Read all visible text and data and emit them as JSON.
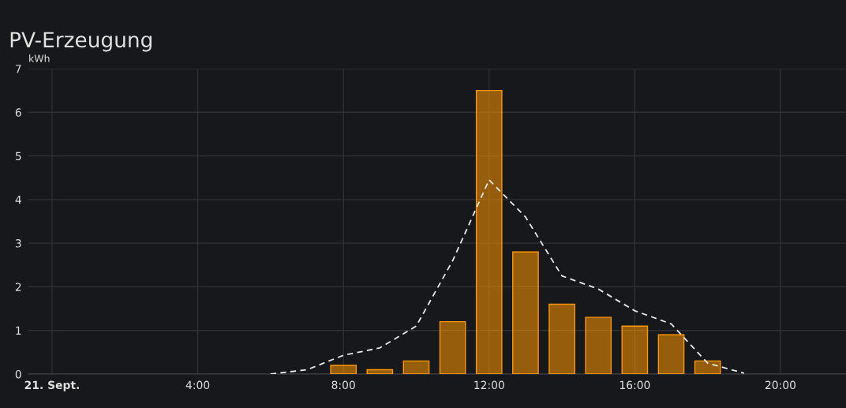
{
  "chart_data": {
    "type": "bar",
    "title": "PV-Erzeugung",
    "ylabel": "kWh",
    "x": [
      8,
      9,
      10,
      11,
      12,
      13,
      14,
      15,
      16,
      17,
      18
    ],
    "series": [
      {
        "color": "#ff9800",
        "values": [
          0.2,
          0.1,
          0.3,
          1.2,
          6.5,
          2.8,
          1.6,
          1.3,
          1.1,
          0.9,
          0.3
        ]
      },
      {
        "type": "line",
        "color": "#e8e8e8",
        "line_style": "dashed",
        "x": [
          6,
          7,
          8,
          9,
          10,
          11,
          12,
          13,
          14,
          15,
          16,
          17,
          18,
          19
        ],
        "values": [
          0,
          0.1,
          0.43,
          0.6,
          1.1,
          2.6,
          4.45,
          3.6,
          2.25,
          1.95,
          1.45,
          1.15,
          0.25,
          0.02
        ]
      }
    ],
    "xlim": [
      -0.65,
      21.8
    ],
    "xticks": [
      {
        "value": 0,
        "label": "21. Sept."
      },
      {
        "value": 4,
        "label": "4:00"
      },
      {
        "value": 8,
        "label": "8:00"
      },
      {
        "value": 12,
        "label": "12:00"
      },
      {
        "value": 16,
        "label": "16:00"
      },
      {
        "value": 20,
        "label": "20:00"
      }
    ],
    "ylim": [
      0,
      7
    ],
    "yticks": [
      0,
      1,
      2,
      3,
      4,
      5,
      6,
      7
    ],
    "grid": true,
    "legend": false
  }
}
